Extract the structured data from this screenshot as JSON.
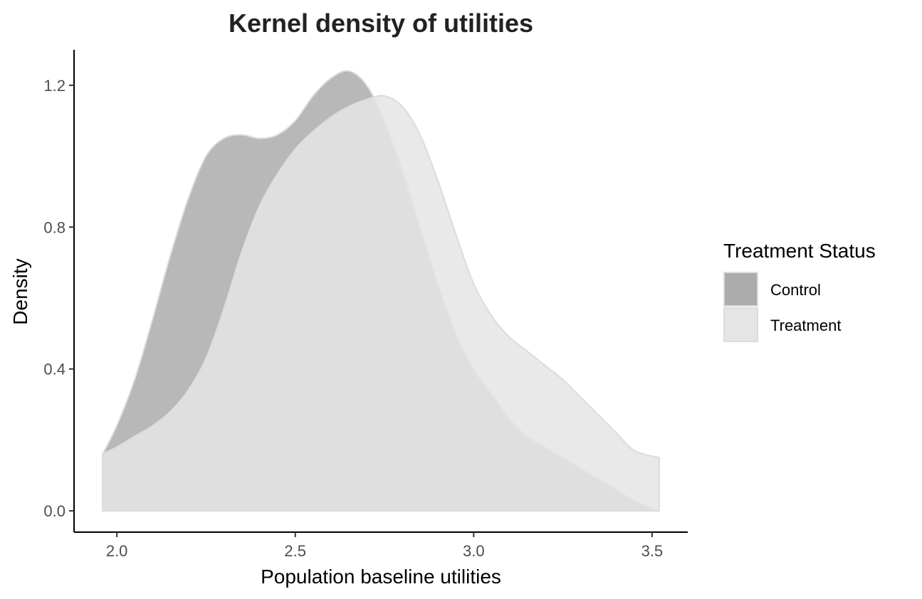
{
  "chart_data": {
    "type": "area",
    "title": "Kernel density of utilities",
    "xlabel": "Population baseline utilities",
    "ylabel": "Density",
    "xlim": [
      1.88,
      3.6
    ],
    "ylim": [
      -0.06,
      1.3
    ],
    "x_ticks": [
      "2.0",
      "2.5",
      "3.0",
      "3.5"
    ],
    "y_ticks": [
      "0.0",
      "0.4",
      "0.8",
      "1.2"
    ],
    "x_tick_values": [
      2.0,
      2.5,
      3.0,
      3.5
    ],
    "y_tick_values": [
      0.0,
      0.4,
      0.8,
      1.2
    ],
    "grid": false,
    "legend": {
      "title": "Treatment Status",
      "position": "right"
    },
    "x": [
      1.96,
      2.0,
      2.05,
      2.1,
      2.15,
      2.2,
      2.25,
      2.3,
      2.35,
      2.4,
      2.45,
      2.5,
      2.55,
      2.6,
      2.65,
      2.7,
      2.75,
      2.8,
      2.85,
      2.9,
      2.95,
      3.0,
      3.05,
      3.1,
      3.15,
      3.2,
      3.25,
      3.3,
      3.35,
      3.4,
      3.45,
      3.52
    ],
    "series": [
      {
        "name": "Control",
        "color": "#ababab",
        "values": [
          0.16,
          0.24,
          0.37,
          0.54,
          0.72,
          0.88,
          1.0,
          1.05,
          1.06,
          1.05,
          1.06,
          1.1,
          1.17,
          1.22,
          1.24,
          1.2,
          1.1,
          0.96,
          0.8,
          0.64,
          0.5,
          0.4,
          0.33,
          0.26,
          0.21,
          0.18,
          0.15,
          0.12,
          0.09,
          0.06,
          0.03,
          0.0
        ]
      },
      {
        "name": "Treatment",
        "color": "#e5e5e5",
        "values": [
          0.16,
          0.18,
          0.21,
          0.24,
          0.28,
          0.34,
          0.43,
          0.57,
          0.73,
          0.86,
          0.95,
          1.02,
          1.07,
          1.11,
          1.14,
          1.16,
          1.17,
          1.14,
          1.06,
          0.93,
          0.78,
          0.64,
          0.55,
          0.49,
          0.45,
          0.41,
          0.37,
          0.32,
          0.27,
          0.22,
          0.17,
          0.15
        ]
      }
    ]
  }
}
